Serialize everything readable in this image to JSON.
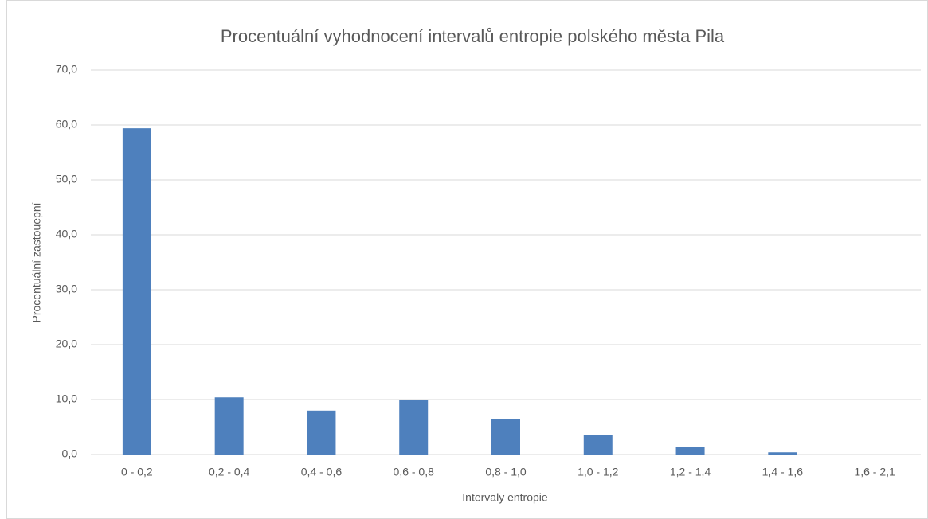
{
  "chart_data": {
    "type": "bar",
    "title": "Procentuální vyhodnocení intervalů entropie polského města Pila",
    "x_label": "Intervaly entropie",
    "y_label": "Procentuální zastouepní",
    "categories": [
      "0 - 0,2",
      "0,2 - 0,4",
      "0,4 - 0,6",
      "0,6 - 0,8",
      "0,8 - 1,0",
      "1,0 - 1,2",
      "1,2 - 1,4",
      "1,4 - 1,6",
      "1,6 - 2,1"
    ],
    "values": [
      59.4,
      10.4,
      8.0,
      10.0,
      6.5,
      3.6,
      1.4,
      0.4,
      0
    ],
    "color": "#4e80bd",
    "ylim": [
      0,
      70
    ],
    "yticks": [
      {
        "value": 0,
        "label": "0,0"
      },
      {
        "value": 10,
        "label": "10,0"
      },
      {
        "value": 20,
        "label": "20,0"
      },
      {
        "value": 30,
        "label": "30,0"
      },
      {
        "value": 40,
        "label": "40,0"
      },
      {
        "value": 50,
        "label": "50,0"
      },
      {
        "value": 60,
        "label": "60,0"
      },
      {
        "value": 70,
        "label": "70,0"
      }
    ],
    "grid": true
  }
}
